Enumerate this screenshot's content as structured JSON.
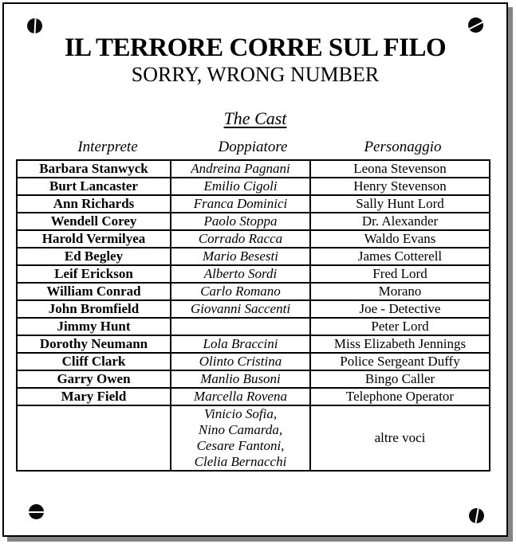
{
  "header": {
    "title": "IL TERRORE CORRE SUL FILO",
    "subtitle": "SORRY, WRONG NUMBER",
    "section_heading": "The Cast"
  },
  "table": {
    "headers": [
      "Interprete",
      "Doppiatore",
      "Personaggio"
    ],
    "rows": [
      [
        "Barbara Stanwyck",
        "Andreina Pagnani",
        "Leona Stevenson"
      ],
      [
        "Burt Lancaster",
        "Emilio Cigoli",
        "Henry Stevenson"
      ],
      [
        "Ann Richards",
        "Franca Dominici",
        "Sally Hunt Lord"
      ],
      [
        "Wendell Corey",
        "Paolo Stoppa",
        "Dr. Alexander"
      ],
      [
        "Harold Vermilyea",
        "Corrado Racca",
        "Waldo Evans"
      ],
      [
        "Ed Begley",
        "Mario Besesti",
        "James Cotterell"
      ],
      [
        "Leif Erickson",
        "Alberto Sordi",
        "Fred Lord"
      ],
      [
        "William Conrad",
        "Carlo Romano",
        "Morano"
      ],
      [
        "John Bromfield",
        "Giovanni Saccenti",
        "Joe - Detective"
      ],
      [
        "Jimmy Hunt",
        "",
        "Peter Lord"
      ],
      [
        "Dorothy Neumann",
        "Lola Braccini",
        "Miss Elizabeth Jennings"
      ],
      [
        "Cliff Clark",
        "Olinto Cristina",
        "Police Sergeant Duffy"
      ],
      [
        "Garry Owen",
        "Manlio Busoni",
        "Bingo Caller"
      ],
      [
        "Mary Field",
        "Marcella Rovena",
        "Telephone Operator"
      ],
      [
        "",
        "Vinicio Sofia,\nNino Camarda,\nCesare Fantoni,\nClelia Bernacchi",
        "altre voci"
      ]
    ]
  },
  "decorations": {
    "corner_fasteners": [
      "screw-top-left",
      "screw-top-right",
      "screw-bottom-left",
      "screw-bottom-right"
    ],
    "colors": {
      "ink": "#000000",
      "paper": "#ffffff",
      "shadow": "#848484"
    }
  }
}
